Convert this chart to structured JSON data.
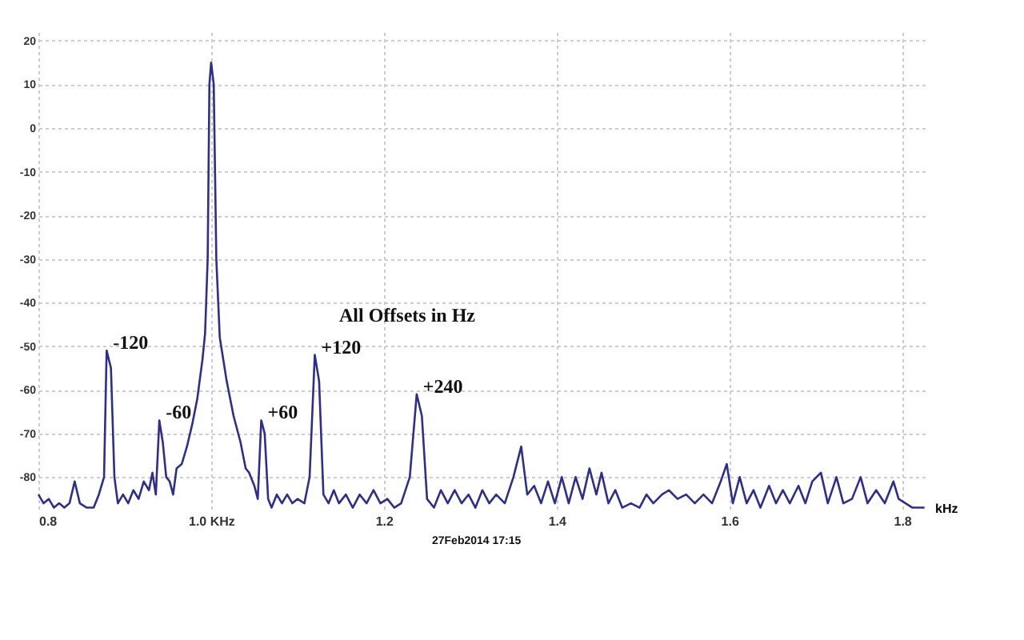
{
  "chart_data": {
    "type": "line",
    "xlabel": "kHz",
    "x": [
      0.8,
      0.806,
      0.812,
      0.818,
      0.824,
      0.83,
      0.836,
      0.842,
      0.848,
      0.856,
      0.864,
      0.87,
      0.876,
      0.879,
      0.884,
      0.888,
      0.892,
      0.898,
      0.904,
      0.91,
      0.916,
      0.922,
      0.928,
      0.932,
      0.936,
      0.94,
      0.944,
      0.948,
      0.952,
      0.956,
      0.96,
      0.966,
      0.972,
      0.978,
      0.984,
      0.99,
      0.993,
      0.996,
      0.998,
      1.0,
      1.003,
      1.006,
      1.01,
      1.018,
      1.026,
      1.034,
      1.04,
      1.044,
      1.05,
      1.054,
      1.058,
      1.062,
      1.066,
      1.07,
      1.076,
      1.082,
      1.088,
      1.094,
      1.1,
      1.108,
      1.114,
      1.12,
      1.125,
      1.13,
      1.136,
      1.142,
      1.148,
      1.156,
      1.164,
      1.172,
      1.18,
      1.188,
      1.196,
      1.204,
      1.212,
      1.22,
      1.23,
      1.238,
      1.244,
      1.25,
      1.258,
      1.266,
      1.274,
      1.282,
      1.29,
      1.298,
      1.306,
      1.314,
      1.322,
      1.33,
      1.34,
      1.35,
      1.359,
      1.366,
      1.374,
      1.382,
      1.39,
      1.398,
      1.406,
      1.414,
      1.422,
      1.43,
      1.438,
      1.446,
      1.452,
      1.46,
      1.468,
      1.476,
      1.486,
      1.496,
      1.504,
      1.512,
      1.522,
      1.53,
      1.54,
      1.55,
      1.56,
      1.57,
      1.58,
      1.59,
      1.597,
      1.604,
      1.612,
      1.62,
      1.628,
      1.636,
      1.646,
      1.654,
      1.662,
      1.67,
      1.68,
      1.688,
      1.696,
      1.706,
      1.714,
      1.724,
      1.732,
      1.742,
      1.752,
      1.76,
      1.77,
      1.78,
      1.79,
      1.796,
      1.804,
      1.812,
      1.826
    ],
    "series": [
      {
        "color": "#2e2e8c",
        "values": [
          -84,
          -86,
          -85,
          -87,
          -86,
          -87,
          -86,
          -81,
          -86,
          -87,
          -87,
          -84,
          -80,
          -51,
          -55,
          -80,
          -86,
          -84,
          -86,
          -83,
          -85,
          -81,
          -83,
          -79,
          -84,
          -67,
          -72,
          -80,
          -81,
          -84,
          -78,
          -77,
          -73,
          -68,
          -62,
          -53,
          -47,
          -30,
          10,
          15,
          10,
          -30,
          -48,
          -58,
          -66,
          -72,
          -78,
          -79,
          -82,
          -85,
          -67,
          -70,
          -85,
          -87,
          -84,
          -86,
          -84,
          -86,
          -85,
          -86,
          -80,
          -52,
          -58,
          -84,
          -86,
          -83,
          -86,
          -84,
          -87,
          -84,
          -86,
          -83,
          -86,
          -85,
          -87,
          -86,
          -80,
          -61,
          -66,
          -85,
          -87,
          -83,
          -86,
          -83,
          -86,
          -84,
          -87,
          -83,
          -86,
          -84,
          -86,
          -80,
          -73,
          -84,
          -82,
          -86,
          -81,
          -86,
          -80,
          -86,
          -80,
          -85,
          -78,
          -84,
          -79,
          -86,
          -83,
          -87,
          -86,
          -87,
          -84,
          -86,
          -84,
          -83,
          -85,
          -84,
          -86,
          -84,
          -86,
          -81,
          -77,
          -86,
          -80,
          -86,
          -83,
          -87,
          -82,
          -86,
          -83,
          -86,
          -82,
          -86,
          -81,
          -79,
          -86,
          -80,
          -86,
          -85,
          -80,
          -86,
          -83,
          -86,
          -81,
          -85,
          -86,
          -87,
          -87
        ]
      }
    ],
    "xlim": [
      0.8,
      1.83
    ],
    "ylim": [
      -88,
      22
    ],
    "xticks": [
      {
        "value": 0.8,
        "label": "0.8"
      },
      {
        "value": 1.0,
        "label": "1.0 KHz"
      },
      {
        "value": 1.2,
        "label": "1.2"
      },
      {
        "value": 1.4,
        "label": "1.4"
      },
      {
        "value": 1.6,
        "label": "1.6"
      },
      {
        "value": 1.8,
        "label": "1.8"
      }
    ],
    "yticks": [
      -80,
      -70,
      -60,
      -50,
      -40,
      -30,
      -20,
      -10,
      0,
      10,
      20
    ],
    "grid": true,
    "line_style": "solid",
    "marker": "none",
    "annotations": [
      {
        "text": "-120",
        "x": 0.879,
        "y": -51
      },
      {
        "text": "-60",
        "x": 0.94,
        "y": -67
      },
      {
        "text": "+60",
        "x": 1.058,
        "y": -67
      },
      {
        "text": "+120",
        "x": 1.12,
        "y": -52
      },
      {
        "text": "+240",
        "x": 1.238,
        "y": -61
      },
      "All Offsets in Hz",
      "27Feb2014  17:15"
    ]
  }
}
